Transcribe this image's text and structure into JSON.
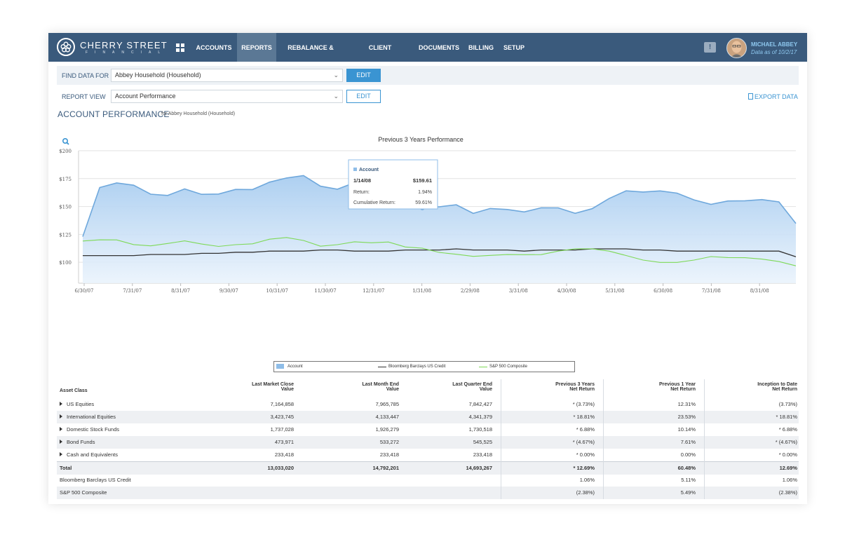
{
  "brand": {
    "name": "CHERRY STREET",
    "sub": "FINANCIAL"
  },
  "nav": {
    "items": [
      {
        "label": "ACCOUNTS"
      },
      {
        "label": "REPORTS"
      },
      {
        "label": "REBALANCE & TRADE"
      },
      {
        "label": "CLIENT REPORTING"
      },
      {
        "label": "DOCUMENTS"
      },
      {
        "label": "BILLING"
      },
      {
        "label": "SETUP"
      }
    ],
    "active": "REPORTS",
    "icons": [
      "apps-grid-icon",
      "alert-icon"
    ]
  },
  "user": {
    "name": "MICHAEL ABBEY",
    "data_as_of": "Data as of 10/2/17"
  },
  "filters": {
    "find_label": "FIND DATA FOR",
    "find_value": "Abbey Household (Household)",
    "find_edit": "EDIT",
    "view_label": "REPORT VIEW",
    "view_value": "Account Performance",
    "view_edit": "EDIT",
    "export": "EXPORT DATA"
  },
  "page": {
    "title": "ACCOUNT PERFORMANCE",
    "subtitle": "for Abbey Household (Household)"
  },
  "colors": {
    "nav": "#3a5a7c",
    "accent": "#3a94d2",
    "account": "#6fa8dc",
    "credit": "#333333",
    "sp500": "#7ed957"
  },
  "chart_data": {
    "type": "area",
    "title": "Previous 3 Years Performance",
    "y_ticks": [
      "$200",
      "$175",
      "$150",
      "$125",
      "$100"
    ],
    "ylim": [
      85,
      200
    ],
    "x_ticks": [
      "6/30/07",
      "7/31/07",
      "8/31/07",
      "9/30/07",
      "10/31/07",
      "11/30/07",
      "12/31/07",
      "1/31/08",
      "2/29/08",
      "3/31/08",
      "4/30/08",
      "5/31/08",
      "6/30/08",
      "7/31/08",
      "8/31/08"
    ],
    "series": [
      {
        "name": "Account",
        "kind": "area",
        "values": [
          123,
          166,
          170,
          169,
          162,
          161,
          166,
          160,
          160,
          165,
          166,
          173,
          176,
          177,
          167,
          165,
          172,
          173,
          161,
          159,
          149,
          149,
          152,
          145,
          149,
          147,
          144,
          148,
          149,
          145,
          149,
          157,
          163,
          162,
          164,
          163,
          157,
          152,
          154,
          154,
          156,
          155,
          136
        ]
      },
      {
        "name": "Bloomberg Barclays US Credit",
        "kind": "line",
        "values": [
          106,
          106,
          106,
          106,
          107,
          107,
          107,
          108,
          108,
          109,
          109,
          110,
          110,
          110,
          111,
          111,
          110,
          110,
          110,
          111,
          111,
          111,
          112,
          111,
          111,
          111,
          110,
          111,
          111,
          111,
          112,
          112,
          112,
          111,
          111,
          110,
          110,
          110,
          110,
          110,
          110,
          110,
          105
        ]
      },
      {
        "name": "S&P 500 Composite",
        "kind": "line",
        "values": [
          118,
          120,
          121,
          117,
          115,
          116,
          118,
          116,
          115,
          117,
          117,
          120,
          121,
          119,
          115,
          117,
          119,
          117,
          117,
          113,
          113,
          110,
          108,
          105,
          105,
          106,
          107,
          108,
          111,
          112,
          111,
          109,
          106,
          103,
          101,
          100,
          101,
          104,
          104,
          105,
          104,
          101,
          96
        ]
      }
    ],
    "tooltip": {
      "series": "Account",
      "date": "1/14/08",
      "value": "$159.61",
      "return_label": "Return:",
      "return_value": "1.94%",
      "cumulative_label": "Cumulative Return:",
      "cumulative_value": "59.61%"
    },
    "legend_position": "bottom",
    "grid": true
  },
  "table": {
    "headers": {
      "asset_class": "Asset Class",
      "last_market_close_1": "Last Market Close",
      "last_market_close_2": "Value",
      "last_month_end_1": "Last Month End",
      "last_month_end_2": "Value",
      "last_quarter_end_1": "Last Quarter End",
      "last_quarter_end_2": "Value",
      "prev3_1": "Previous 3 Years",
      "prev3_2": "Net Return",
      "prev1_1": "Previous 1 Year",
      "prev1_2": "Net Return",
      "itd_1": "Inception to Date",
      "itd_2": "Net Return"
    },
    "rows": [
      {
        "name": "US Equities",
        "lmc": "7,164,858",
        "lme": "7,965,785",
        "lqe": "7,842,427",
        "p3": "* (3.73%)",
        "p1": "12.31%",
        "itd": "(3.73%)"
      },
      {
        "name": "International Equities",
        "lmc": "3,423,745",
        "lme": "4,133,447",
        "lqe": "4,341,379",
        "p3": "* 18.81%",
        "p1": "23.53%",
        "itd": "* 18.81%"
      },
      {
        "name": "Domestic Stock Funds",
        "lmc": "1,737,028",
        "lme": "1,926,279",
        "lqe": "1,730,518",
        "p3": "* 6.88%",
        "p1": "10.14%",
        "itd": "* 6.88%"
      },
      {
        "name": "Bond Funds",
        "lmc": "473,971",
        "lme": "533,272",
        "lqe": "545,525",
        "p3": "* (4.67%)",
        "p1": "7.61%",
        "itd": "* (4.67%)"
      },
      {
        "name": "Cash and Equivalents",
        "lmc": "233,418",
        "lme": "233,418",
        "lqe": "233,418",
        "p3": "* 0.00%",
        "p1": "0.00%",
        "itd": "* 0.00%"
      }
    ],
    "total": {
      "name": "Total",
      "lmc": "13,033,020",
      "lme": "14,792,201",
      "lqe": "14,693,267",
      "p3": "* 12.69%",
      "p1": "60.48%",
      "itd": "12.69%"
    },
    "benchmarks": [
      {
        "name": "Bloomberg Barclays US Credit",
        "p3": "1.06%",
        "p1": "5.11%",
        "itd": "1.06%"
      },
      {
        "name": "S&P 500 Composite",
        "p3": "(2.38%)",
        "p1": "5.49%",
        "itd": "(2.38%)"
      }
    ]
  }
}
